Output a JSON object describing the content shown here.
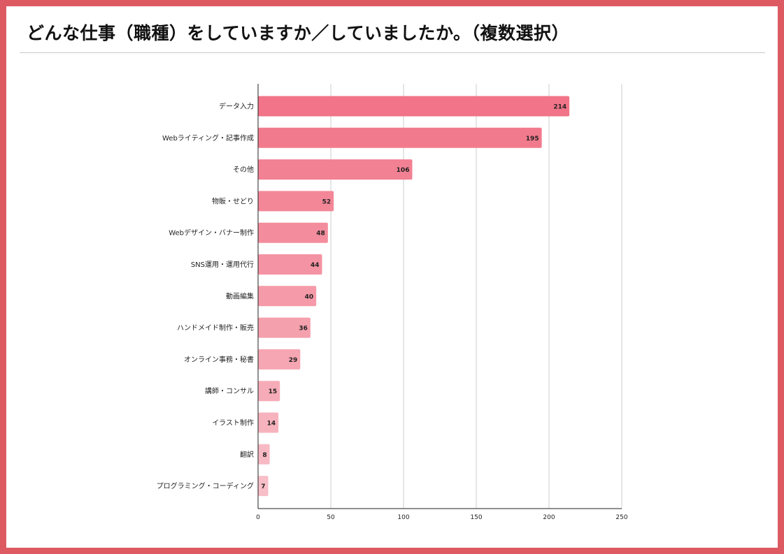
{
  "title": "どんな仕事（職種）をしていますか／していましたか。（複数選択）",
  "colors": {
    "border": "#dd5a63",
    "bar_top": "#f17488",
    "bar_bottom": "#f8bfc8",
    "grid": "#cccccc",
    "axis": "#222222"
  },
  "chart_data": {
    "type": "bar",
    "orientation": "horizontal",
    "title": "どんな仕事（職種）をしていますか／していましたか。（複数選択）",
    "categories": [
      "データ入力",
      "Webライティング・記事作成",
      "その他",
      "物販・せどり",
      "Webデザイン・バナー制作",
      "SNS運用・運用代行",
      "動画編集",
      "ハンドメイド制作・販売",
      "オンライン事務・秘書",
      "講師・コンサル",
      "イラスト制作",
      "翻訳",
      "プログラミング・コーディング"
    ],
    "values": [
      214,
      195,
      106,
      52,
      48,
      44,
      40,
      36,
      29,
      15,
      14,
      8,
      7
    ],
    "xlim": [
      0,
      250
    ],
    "xticks": [
      0,
      50,
      100,
      150,
      200,
      250
    ],
    "grid": true,
    "data_labels": true,
    "legend": "none"
  }
}
